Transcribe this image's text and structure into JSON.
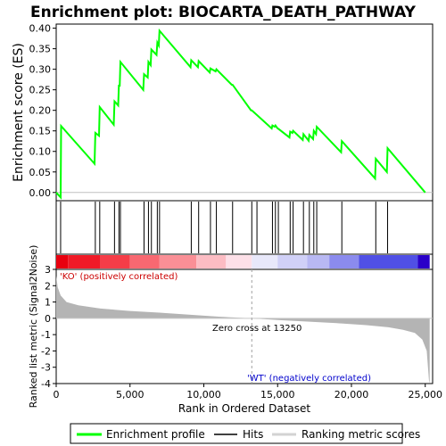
{
  "chart_data": {
    "type": "line",
    "title": "Enrichment plot: BIOCARTA_DEATH_PATHWAY",
    "xlabel": "Rank in Ordered Dataset",
    "ylabel_top": "Enrichment score (ES)",
    "ylabel_bottom": "Ranked list metric (Signal2Noise)",
    "xlim": [
      0,
      25500
    ],
    "es_ylim": [
      -0.02,
      0.41
    ],
    "metric_ylim": [
      -4,
      3
    ],
    "x_ticks": [
      0,
      5000,
      10000,
      15000,
      20000,
      25000
    ],
    "x_tick_labels": [
      "0",
      "5,000",
      "10,000",
      "15,000",
      "20,000",
      "25,000"
    ],
    "es_ticks": [
      0.0,
      0.05,
      0.1,
      0.15,
      0.2,
      0.25,
      0.3,
      0.35,
      0.4
    ],
    "es_tick_labels": [
      "0.00",
      "0.05",
      "0.10",
      "0.15",
      "0.20",
      "0.25",
      "0.30",
      "0.35",
      "0.40"
    ],
    "metric_ticks": [
      3,
      2,
      1,
      0,
      -1,
      -2,
      -3,
      -4
    ],
    "metric_tick_labels": [
      "3",
      "2",
      "1",
      "0",
      "-1",
      "-2",
      "-3",
      "-4"
    ],
    "series": [
      {
        "name": "Enrichment profile",
        "color": "#00ff00",
        "x": [
          0,
          300,
          330,
          2600,
          2650,
          2900,
          2950,
          3900,
          3950,
          4200,
          4250,
          4300,
          4350,
          5900,
          5950,
          6200,
          6250,
          6400,
          6450,
          6800,
          6850,
          6950,
          7000,
          9100,
          9150,
          9600,
          9650,
          10400,
          10450,
          10800,
          10850,
          11900,
          11950,
          13200,
          13250,
          14600,
          14650,
          14800,
          14850,
          15000,
          15050,
          15800,
          15850,
          16000,
          16050,
          16700,
          16750,
          17100,
          17150,
          17400,
          17450,
          17600,
          17650,
          19300,
          19350,
          21600,
          21650,
          22400,
          22450,
          25000
        ],
        "y": [
          0.0,
          -0.012,
          0.162,
          0.07,
          0.145,
          0.138,
          0.208,
          0.165,
          0.222,
          0.212,
          0.262,
          0.258,
          0.318,
          0.25,
          0.288,
          0.28,
          0.318,
          0.31,
          0.348,
          0.335,
          0.365,
          0.358,
          0.394,
          0.305,
          0.322,
          0.305,
          0.32,
          0.292,
          0.302,
          0.295,
          0.3,
          0.262,
          0.262,
          0.2,
          0.2,
          0.156,
          0.163,
          0.16,
          0.163,
          0.156,
          0.155,
          0.134,
          0.148,
          0.145,
          0.15,
          0.128,
          0.142,
          0.126,
          0.14,
          0.13,
          0.15,
          0.142,
          0.16,
          0.098,
          0.125,
          0.034,
          0.082,
          0.05,
          0.108,
          0.0
        ]
      }
    ],
    "hits": [
      300,
      2650,
      2950,
      3950,
      4250,
      4350,
      5950,
      6250,
      6450,
      6850,
      7000,
      9150,
      9650,
      10450,
      10850,
      11950,
      13250,
      13600,
      14650,
      14850,
      15050,
      15850,
      16050,
      16750,
      17150,
      17450,
      17650,
      19350,
      21650,
      22450
    ],
    "heatmap": {
      "segments": [
        {
          "from": 0,
          "to": 800,
          "color": "#e8000f"
        },
        {
          "from": 800,
          "to": 3000,
          "color": "#f01a27"
        },
        {
          "from": 3000,
          "to": 5000,
          "color": "#f53d48"
        },
        {
          "from": 5000,
          "to": 7000,
          "color": "#f86871"
        },
        {
          "from": 7000,
          "to": 9500,
          "color": "#fa8f96"
        },
        {
          "from": 9500,
          "to": 11500,
          "color": "#fcbcc3"
        },
        {
          "from": 11500,
          "to": 13250,
          "color": "#fde0e8"
        },
        {
          "from": 13250,
          "to": 15000,
          "color": "#e8e8fa"
        },
        {
          "from": 15000,
          "to": 17000,
          "color": "#d0d0f7"
        },
        {
          "from": 17000,
          "to": 18500,
          "color": "#b8b8f3"
        },
        {
          "from": 18500,
          "to": 20500,
          "color": "#8b8bee"
        },
        {
          "from": 20500,
          "to": 24500,
          "color": "#5050e5"
        },
        {
          "from": 24500,
          "to": 25300,
          "color": "#2a00c8"
        }
      ]
    },
    "metric_profile": {
      "x": [
        0,
        100,
        300,
        700,
        1500,
        3000,
        5000,
        7000,
        9000,
        11000,
        13250,
        15000,
        17000,
        19000,
        21000,
        22500,
        23500,
        24300,
        24800,
        25100,
        25250,
        25300
      ],
      "y": [
        2.6,
        1.9,
        1.4,
        1.0,
        0.8,
        0.6,
        0.45,
        0.35,
        0.22,
        0.1,
        0.0,
        -0.1,
        -0.2,
        -0.3,
        -0.42,
        -0.55,
        -0.7,
        -0.9,
        -1.3,
        -2.0,
        -3.8,
        -4.0
      ]
    },
    "annotations": {
      "ko_label": "'KO' (positively correlated)",
      "wt_label": "'WT' (negatively correlated)",
      "zero_cross": "Zero cross at 13250",
      "zero_cross_x": 13250
    },
    "legend": [
      {
        "label": "Enrichment profile",
        "color": "#00ff00"
      },
      {
        "label": "Hits",
        "color": "#000000"
      },
      {
        "label": "Ranking metric scores",
        "color": "#d3d3d3"
      }
    ]
  }
}
